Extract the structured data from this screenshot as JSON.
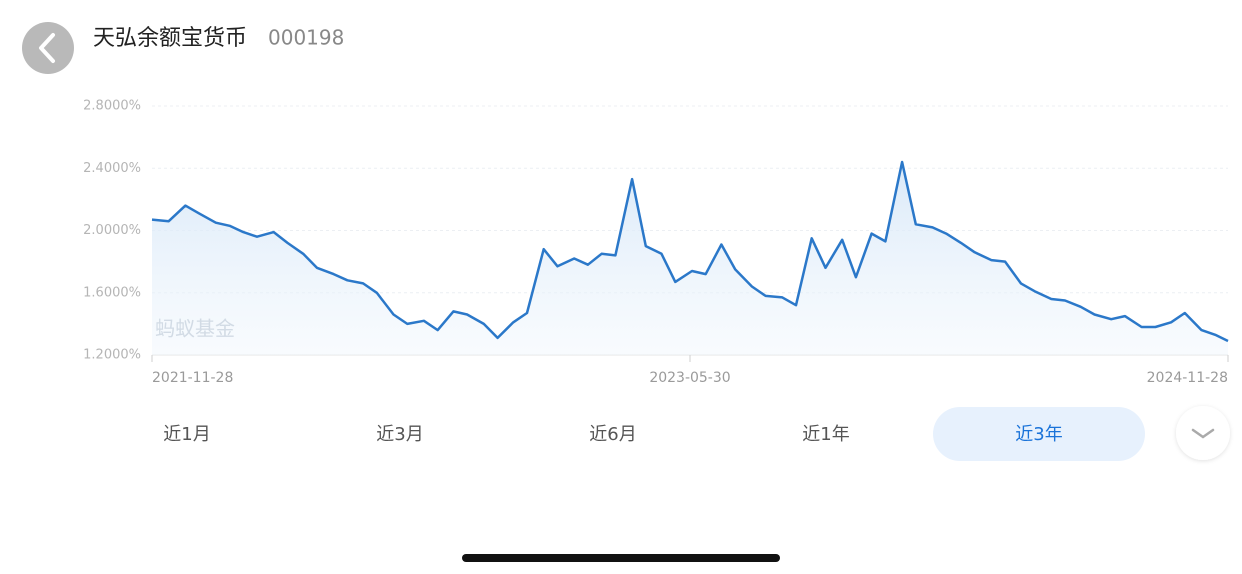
{
  "header": {
    "title": "天弘余额宝货币",
    "code": "000198"
  },
  "chart_data": {
    "type": "line",
    "watermark": "蚂蚁基金",
    "x": [
      "2021-11-28",
      "2021-12-15",
      "2022-01-01",
      "2022-01-15",
      "2022-02-01",
      "2022-02-15",
      "2022-03-01",
      "2022-03-15",
      "2022-04-01",
      "2022-04-15",
      "2022-05-01",
      "2022-05-15",
      "2022-06-01",
      "2022-06-15",
      "2022-07-01",
      "2022-07-15",
      "2022-08-01",
      "2022-08-15",
      "2022-09-01",
      "2022-09-15",
      "2022-10-01",
      "2022-10-15",
      "2022-11-01",
      "2022-11-15",
      "2022-12-01",
      "2022-12-15",
      "2023-01-01",
      "2023-01-15",
      "2023-02-01",
      "2023-02-15",
      "2023-03-01",
      "2023-03-15",
      "2023-04-01",
      "2023-04-15",
      "2023-05-01",
      "2023-05-15",
      "2023-06-01",
      "2023-06-15",
      "2023-07-01",
      "2023-07-15",
      "2023-08-01",
      "2023-08-15",
      "2023-09-01",
      "2023-09-15",
      "2023-10-01",
      "2023-10-15",
      "2023-11-01",
      "2023-11-15",
      "2023-12-01",
      "2023-12-15",
      "2024-01-01",
      "2024-01-15",
      "2024-02-01",
      "2024-02-15",
      "2024-03-01",
      "2024-03-15",
      "2024-04-01",
      "2024-04-15",
      "2024-05-01",
      "2024-05-15",
      "2024-06-01",
      "2024-06-15",
      "2024-07-01",
      "2024-07-15",
      "2024-08-01",
      "2024-08-15",
      "2024-09-01",
      "2024-09-15",
      "2024-10-01",
      "2024-10-15",
      "2024-11-01",
      "2024-11-15",
      "2024-11-28"
    ],
    "series": [
      {
        "color": "#2b78c9",
        "values": [
          2.07,
          2.06,
          2.16,
          2.11,
          2.05,
          2.03,
          1.99,
          1.96,
          1.99,
          1.92,
          1.85,
          1.76,
          1.72,
          1.68,
          1.66,
          1.6,
          1.46,
          1.4,
          1.42,
          1.36,
          1.48,
          1.46,
          1.4,
          1.31,
          1.41,
          1.47,
          1.88,
          1.77,
          1.82,
          1.78,
          1.85,
          1.84,
          2.33,
          1.9,
          1.85,
          1.67,
          1.74,
          1.72,
          1.91,
          1.75,
          1.64,
          1.58,
          1.57,
          1.52,
          1.95,
          1.76,
          1.94,
          1.7,
          1.98,
          1.93,
          2.44,
          2.04,
          2.02,
          1.98,
          1.92,
          1.86,
          1.81,
          1.8,
          1.66,
          1.61,
          1.56,
          1.55,
          1.51,
          1.46,
          1.43,
          1.45,
          1.38,
          1.38,
          1.41,
          1.47,
          1.36,
          1.33,
          1.29
        ]
      }
    ],
    "xlim": [
      "2021-11-28",
      "2024-11-28"
    ],
    "xticks": [
      "2021-11-28",
      "2023-05-30",
      "2024-11-28"
    ],
    "ylim": [
      1.2,
      2.8
    ],
    "yticks": [
      {
        "value": 1.2,
        "label": "1.2000%"
      },
      {
        "value": 1.6,
        "label": "1.6000%"
      },
      {
        "value": 2.0,
        "label": "2.0000%"
      },
      {
        "value": 2.4,
        "label": "2.4000%"
      },
      {
        "value": 2.8,
        "label": "2.8000%"
      }
    ],
    "grid": true
  },
  "range_tabs": {
    "options": [
      "近1月",
      "近3月",
      "近6月",
      "近1年",
      "近3年"
    ],
    "selected": 4
  }
}
